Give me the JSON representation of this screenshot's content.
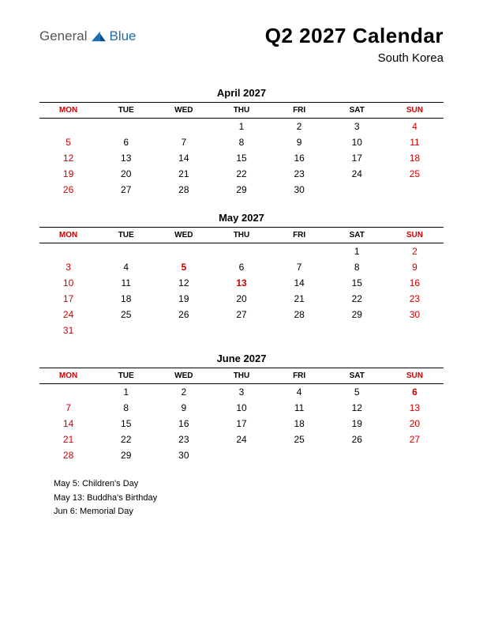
{
  "logo": {
    "part1": "General",
    "part2": "Blue"
  },
  "colors": {
    "red": "#cc0000",
    "text": "#000000",
    "logo_gray": "#555555",
    "logo_blue": "#1e6db0",
    "bg": "#ffffff"
  },
  "title": "Q2 2027 Calendar",
  "subtitle": "South Korea",
  "day_headers": [
    "MON",
    "TUE",
    "WED",
    "THU",
    "FRI",
    "SAT",
    "SUN"
  ],
  "months": [
    {
      "name": "April 2027",
      "weeks": [
        [
          {
            "d": ""
          },
          {
            "d": ""
          },
          {
            "d": ""
          },
          {
            "d": "1"
          },
          {
            "d": "2"
          },
          {
            "d": "3"
          },
          {
            "d": "4",
            "s": "red"
          }
        ],
        [
          {
            "d": "5",
            "s": "red"
          },
          {
            "d": "6"
          },
          {
            "d": "7"
          },
          {
            "d": "8"
          },
          {
            "d": "9"
          },
          {
            "d": "10"
          },
          {
            "d": "11",
            "s": "red"
          }
        ],
        [
          {
            "d": "12",
            "s": "red"
          },
          {
            "d": "13"
          },
          {
            "d": "14"
          },
          {
            "d": "15"
          },
          {
            "d": "16"
          },
          {
            "d": "17"
          },
          {
            "d": "18",
            "s": "red"
          }
        ],
        [
          {
            "d": "19",
            "s": "red"
          },
          {
            "d": "20"
          },
          {
            "d": "21"
          },
          {
            "d": "22"
          },
          {
            "d": "23"
          },
          {
            "d": "24"
          },
          {
            "d": "25",
            "s": "red"
          }
        ],
        [
          {
            "d": "26",
            "s": "red"
          },
          {
            "d": "27"
          },
          {
            "d": "28"
          },
          {
            "d": "29"
          },
          {
            "d": "30"
          },
          {
            "d": ""
          },
          {
            "d": ""
          }
        ]
      ]
    },
    {
      "name": "May 2027",
      "weeks": [
        [
          {
            "d": ""
          },
          {
            "d": ""
          },
          {
            "d": ""
          },
          {
            "d": ""
          },
          {
            "d": ""
          },
          {
            "d": "1"
          },
          {
            "d": "2",
            "s": "red"
          }
        ],
        [
          {
            "d": "3",
            "s": "red"
          },
          {
            "d": "4"
          },
          {
            "d": "5",
            "s": "red-bold"
          },
          {
            "d": "6"
          },
          {
            "d": "7"
          },
          {
            "d": "8"
          },
          {
            "d": "9",
            "s": "red"
          }
        ],
        [
          {
            "d": "10",
            "s": "red"
          },
          {
            "d": "11"
          },
          {
            "d": "12"
          },
          {
            "d": "13",
            "s": "red-bold"
          },
          {
            "d": "14"
          },
          {
            "d": "15"
          },
          {
            "d": "16",
            "s": "red"
          }
        ],
        [
          {
            "d": "17",
            "s": "red"
          },
          {
            "d": "18"
          },
          {
            "d": "19"
          },
          {
            "d": "20"
          },
          {
            "d": "21"
          },
          {
            "d": "22"
          },
          {
            "d": "23",
            "s": "red"
          }
        ],
        [
          {
            "d": "24",
            "s": "red"
          },
          {
            "d": "25"
          },
          {
            "d": "26"
          },
          {
            "d": "27"
          },
          {
            "d": "28"
          },
          {
            "d": "29"
          },
          {
            "d": "30",
            "s": "red"
          }
        ],
        [
          {
            "d": "31",
            "s": "red"
          },
          {
            "d": ""
          },
          {
            "d": ""
          },
          {
            "d": ""
          },
          {
            "d": ""
          },
          {
            "d": ""
          },
          {
            "d": ""
          }
        ]
      ]
    },
    {
      "name": "June 2027",
      "weeks": [
        [
          {
            "d": ""
          },
          {
            "d": "1"
          },
          {
            "d": "2"
          },
          {
            "d": "3"
          },
          {
            "d": "4"
          },
          {
            "d": "5"
          },
          {
            "d": "6",
            "s": "red-bold"
          }
        ],
        [
          {
            "d": "7",
            "s": "red"
          },
          {
            "d": "8"
          },
          {
            "d": "9"
          },
          {
            "d": "10"
          },
          {
            "d": "11"
          },
          {
            "d": "12"
          },
          {
            "d": "13",
            "s": "red"
          }
        ],
        [
          {
            "d": "14",
            "s": "red"
          },
          {
            "d": "15"
          },
          {
            "d": "16"
          },
          {
            "d": "17"
          },
          {
            "d": "18"
          },
          {
            "d": "19"
          },
          {
            "d": "20",
            "s": "red"
          }
        ],
        [
          {
            "d": "21",
            "s": "red"
          },
          {
            "d": "22"
          },
          {
            "d": "23"
          },
          {
            "d": "24"
          },
          {
            "d": "25"
          },
          {
            "d": "26"
          },
          {
            "d": "27",
            "s": "red"
          }
        ],
        [
          {
            "d": "28",
            "s": "red"
          },
          {
            "d": "29"
          },
          {
            "d": "30"
          },
          {
            "d": ""
          },
          {
            "d": ""
          },
          {
            "d": ""
          },
          {
            "d": ""
          }
        ]
      ]
    }
  ],
  "holidays": [
    "May 5: Children's Day",
    "May 13: Buddha's Birthday",
    "Jun 6: Memorial Day"
  ],
  "header_red_cols": [
    0,
    6
  ]
}
